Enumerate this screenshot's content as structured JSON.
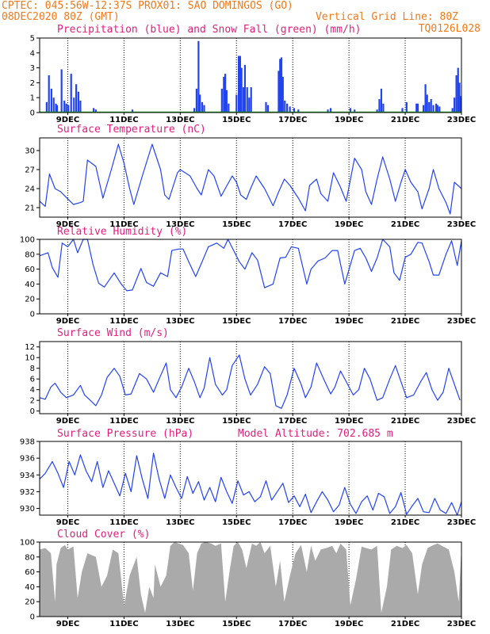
{
  "header": {
    "line1": "CPTEC:  045:56W-12:37S   PROX01: SAO DOMINGOS (GO)",
    "line2_left": "08DEC2020 80Z (GMT)",
    "line2_right": "Vertical Grid Line: 80Z",
    "code": "TQ0126L028"
  },
  "colors": {
    "header": "#f07a1a",
    "panel_title": "#e0207a",
    "line": "#2244ee",
    "bar": "#2244ee",
    "snow": "#22aa22",
    "cloud": "#aaaaaa"
  },
  "chart_data": [
    {
      "id": "precip",
      "type": "bar",
      "title": "Precipitation (blue) and Snow Fall (green) (mm/h)",
      "x_tick_labels": [
        "9DEC",
        "11DEC",
        "13DEC",
        "15DEC",
        "17DEC",
        "19DEC",
        "21DEC",
        "23DEC"
      ],
      "x_range": [
        0,
        15
      ],
      "ylim": [
        0,
        5
      ],
      "y_ticks": [
        0,
        1,
        2,
        3,
        4,
        5
      ],
      "grid": "vertical dotted at each labeled date",
      "series": [
        {
          "name": "Precipitation",
          "color": "#2244ee",
          "values": [
            [
              0.25,
              0.7
            ],
            [
              0.33,
              2.5
            ],
            [
              0.42,
              1.6
            ],
            [
              0.5,
              1.0
            ],
            [
              0.58,
              0.6
            ],
            [
              0.62,
              0.5
            ],
            [
              0.78,
              2.9
            ],
            [
              0.88,
              0.8
            ],
            [
              0.95,
              0.6
            ],
            [
              1.02,
              0.5
            ],
            [
              1.12,
              2.6
            ],
            [
              1.22,
              1.0
            ],
            [
              1.3,
              1.9
            ],
            [
              1.38,
              1.4
            ],
            [
              1.45,
              0.8
            ],
            [
              1.92,
              0.3
            ],
            [
              2.0,
              0.2
            ],
            [
              3.3,
              0.2
            ],
            [
              5.5,
              0.3
            ],
            [
              5.58,
              1.6
            ],
            [
              5.65,
              4.8
            ],
            [
              5.7,
              1.2
            ],
            [
              5.78,
              0.7
            ],
            [
              5.85,
              0.5
            ],
            [
              6.48,
              1.6
            ],
            [
              6.55,
              2.4
            ],
            [
              6.6,
              2.6
            ],
            [
              6.65,
              1.5
            ],
            [
              6.72,
              0.6
            ],
            [
              7.0,
              1.2
            ],
            [
              7.08,
              3.8
            ],
            [
              7.13,
              3.8
            ],
            [
              7.18,
              3.0
            ],
            [
              7.25,
              1.7
            ],
            [
              7.3,
              3.2
            ],
            [
              7.38,
              1.7
            ],
            [
              7.45,
              1.0
            ],
            [
              7.52,
              1.7
            ],
            [
              8.05,
              0.7
            ],
            [
              8.12,
              0.5
            ],
            [
              8.5,
              2.8
            ],
            [
              8.55,
              3.6
            ],
            [
              8.6,
              3.7
            ],
            [
              8.65,
              2.4
            ],
            [
              8.72,
              0.8
            ],
            [
              8.8,
              0.6
            ],
            [
              8.9,
              0.4
            ],
            [
              9.05,
              0.3
            ],
            [
              9.2,
              0.2
            ],
            [
              10.25,
              0.2
            ],
            [
              10.35,
              0.3
            ],
            [
              11.05,
              0.3
            ],
            [
              11.2,
              0.2
            ],
            [
              12.0,
              0.2
            ],
            [
              12.08,
              0.9
            ],
            [
              12.15,
              1.6
            ],
            [
              12.22,
              0.6
            ],
            [
              12.9,
              0.3
            ],
            [
              13.05,
              0.7
            ],
            [
              13.4,
              0.6
            ],
            [
              13.45,
              0.6
            ],
            [
              13.65,
              0.5
            ],
            [
              13.72,
              1.9
            ],
            [
              13.78,
              1.2
            ],
            [
              13.85,
              0.7
            ],
            [
              13.92,
              0.9
            ],
            [
              14.0,
              0.5
            ],
            [
              14.1,
              0.6
            ],
            [
              14.15,
              0.5
            ],
            [
              14.22,
              0.4
            ],
            [
              14.68,
              0.3
            ],
            [
              14.75,
              1.0
            ],
            [
              14.82,
              2.5
            ],
            [
              14.88,
              3.0
            ],
            [
              14.93,
              2.0
            ],
            [
              14.97,
              1.1
            ]
          ]
        },
        {
          "name": "Snow Fall",
          "color": "#22aa22",
          "values": []
        }
      ]
    },
    {
      "id": "temp",
      "type": "line",
      "title": "Surface Temperature (nC)",
      "x_tick_labels": [
        "9DEC",
        "11DEC",
        "13DEC",
        "15DEC",
        "17DEC",
        "19DEC",
        "21DEC",
        "23DEC"
      ],
      "ylim": [
        19.5,
        32
      ],
      "y_ticks": [
        21,
        24,
        27,
        30
      ],
      "x": [
        0,
        0.2,
        0.35,
        0.55,
        0.75,
        0.95,
        1.2,
        1.45,
        1.55,
        1.7,
        2.0,
        2.25,
        2.55,
        2.8,
        3.0,
        3.2,
        3.35,
        3.65,
        4.0,
        4.3,
        4.45,
        4.6,
        4.9,
        5.0,
        5.35,
        5.6,
        5.75,
        6.0,
        6.2,
        6.45,
        6.6,
        6.85,
        7.0,
        7.15,
        7.35,
        7.5,
        7.7,
        8.0,
        8.3,
        8.5,
        8.7,
        8.9,
        9.2,
        9.45,
        9.6,
        9.85,
        10.0,
        10.25,
        10.45,
        10.7,
        10.9,
        11.2,
        11.45,
        11.6,
        11.8,
        12.0,
        12.2,
        12.45,
        12.65,
        12.85,
        13.0,
        13.2,
        13.45,
        13.6,
        13.85,
        14.0,
        14.2,
        14.45,
        14.6,
        14.75,
        15.0
      ],
      "y": [
        22,
        21.2,
        26.3,
        24,
        23.5,
        22.6,
        21.5,
        21.8,
        22,
        28.5,
        27.5,
        22.5,
        27,
        31,
        28,
        24,
        21.5,
        26,
        31,
        27,
        23,
        22.3,
        26.5,
        27,
        26,
        24,
        23,
        27,
        26,
        22.8,
        24,
        26,
        25,
        23,
        22.3,
        24,
        26,
        24,
        21.3,
        23.5,
        25.5,
        24.5,
        22.5,
        20.5,
        24.5,
        25.5,
        23.2,
        22,
        26.5,
        24.2,
        22,
        28.8,
        27,
        23.5,
        21.5,
        25.5,
        29,
        25.5,
        22,
        25,
        27,
        25,
        23.5,
        20.8,
        24,
        27,
        24,
        21.8,
        20,
        25,
        24
      ]
    },
    {
      "id": "rh",
      "type": "line",
      "title": "Relative Humidity (%)",
      "x_tick_labels": [
        "9DEC",
        "11DEC",
        "13DEC",
        "15DEC",
        "17DEC",
        "19DEC",
        "21DEC",
        "23DEC"
      ],
      "ylim": [
        0,
        100
      ],
      "y_ticks": [
        0,
        20,
        40,
        60,
        80,
        100
      ],
      "x": [
        0,
        0.3,
        0.45,
        0.65,
        0.8,
        1.0,
        1.2,
        1.35,
        1.55,
        1.7,
        1.9,
        2.1,
        2.3,
        2.65,
        2.9,
        3.1,
        3.3,
        3.6,
        3.8,
        4.05,
        4.3,
        4.55,
        4.7,
        4.95,
        5.1,
        5.3,
        5.55,
        5.8,
        6.0,
        6.3,
        6.55,
        6.7,
        6.9,
        7.1,
        7.3,
        7.55,
        7.75,
        8.0,
        8.3,
        8.55,
        8.75,
        8.95,
        9.2,
        9.5,
        9.65,
        9.9,
        10.15,
        10.4,
        10.6,
        10.85,
        11.2,
        11.4,
        11.6,
        11.8,
        12.0,
        12.2,
        12.45,
        12.6,
        12.8,
        13.0,
        13.2,
        13.45,
        13.6,
        13.85,
        14.0,
        14.2,
        14.45,
        14.65,
        14.85,
        15.0
      ],
      "y": [
        78,
        82,
        62,
        49,
        95,
        90,
        100,
        82,
        100,
        100,
        66,
        41,
        36,
        55,
        40,
        31,
        32,
        61,
        42,
        37,
        55,
        50,
        85,
        87,
        87,
        70,
        50,
        72,
        90,
        95,
        88,
        100,
        85,
        70,
        60,
        82,
        72,
        35,
        40,
        75,
        76,
        90,
        88,
        40,
        60,
        71,
        75,
        85,
        85,
        40,
        85,
        88,
        75,
        57,
        75,
        100,
        90,
        55,
        45,
        76,
        80,
        96,
        95,
        70,
        52,
        52,
        80,
        98,
        65,
        98
      ]
    },
    {
      "id": "wind",
      "type": "line",
      "title": "Surface Wind (m/s)",
      "x_tick_labels": [
        "9DEC",
        "11DEC",
        "13DEC",
        "15DEC",
        "17DEC",
        "19DEC",
        "21DEC",
        "23DEC"
      ],
      "ylim": [
        -0.5,
        13
      ],
      "y_ticks": [
        0,
        2,
        4,
        6,
        8,
        10,
        12
      ],
      "x": [
        0,
        0.2,
        0.4,
        0.55,
        0.75,
        0.95,
        1.2,
        1.45,
        1.6,
        1.8,
        2.0,
        2.2,
        2.4,
        2.65,
        2.85,
        3.05,
        3.25,
        3.55,
        3.8,
        4.05,
        4.25,
        4.5,
        4.65,
        4.85,
        5.05,
        5.3,
        5.5,
        5.7,
        5.85,
        6.05,
        6.25,
        6.5,
        6.65,
        6.85,
        7.1,
        7.3,
        7.5,
        7.75,
        8.0,
        8.2,
        8.4,
        8.6,
        8.8,
        9.05,
        9.3,
        9.45,
        9.65,
        9.85,
        10.1,
        10.35,
        10.5,
        10.7,
        10.95,
        11.15,
        11.35,
        11.55,
        11.75,
        12.0,
        12.2,
        12.45,
        12.65,
        12.85,
        13.05,
        13.3,
        13.55,
        13.75,
        13.95,
        14.15,
        14.35,
        14.55,
        14.75,
        14.95
      ],
      "y": [
        2.5,
        2.2,
        4.5,
        5.2,
        3.5,
        2.5,
        3,
        4.8,
        3,
        2,
        1,
        3,
        6.3,
        8,
        6.5,
        3,
        3.2,
        7,
        6,
        3.5,
        6,
        9,
        4,
        2.5,
        4.5,
        8,
        5.5,
        2.5,
        4.3,
        10,
        5,
        3,
        4,
        8.5,
        10.5,
        6,
        3,
        5,
        8.3,
        7,
        1,
        0.5,
        3,
        8,
        5,
        2.5,
        4.5,
        9,
        6,
        3.2,
        4.5,
        7.5,
        5,
        3,
        4,
        8,
        6,
        2,
        2.5,
        6,
        8.5,
        5.5,
        2.5,
        3,
        5.5,
        7.2,
        4,
        2,
        3.5,
        8,
        5,
        2
      ]
    },
    {
      "id": "pres",
      "type": "line",
      "title": "Surface Pressure (hPa)",
      "annotation": "Model Altitude: 702.685 m",
      "x_tick_labels": [
        "9DEC",
        "11DEC",
        "13DEC",
        "15DEC",
        "17DEC",
        "19DEC",
        "21DEC",
        "23DEC"
      ],
      "ylim": [
        929.2,
        938
      ],
      "y_ticks": [
        930,
        932,
        934,
        936,
        938
      ],
      "x": [
        0,
        0.2,
        0.45,
        0.65,
        0.85,
        1.05,
        1.25,
        1.45,
        1.65,
        1.85,
        2.05,
        2.25,
        2.45,
        2.65,
        2.85,
        3.05,
        3.25,
        3.45,
        3.65,
        3.85,
        4.05,
        4.25,
        4.45,
        4.65,
        4.85,
        5.05,
        5.25,
        5.45,
        5.65,
        5.85,
        6.05,
        6.25,
        6.45,
        6.65,
        6.85,
        7.05,
        7.25,
        7.45,
        7.65,
        7.85,
        8.05,
        8.25,
        8.45,
        8.65,
        8.85,
        9.05,
        9.25,
        9.45,
        9.65,
        9.85,
        10.05,
        10.25,
        10.45,
        10.65,
        10.85,
        11.05,
        11.25,
        11.45,
        11.65,
        11.85,
        12.05,
        12.25,
        12.45,
        12.65,
        12.85,
        13.05,
        13.25,
        13.45,
        13.65,
        13.85,
        14.05,
        14.25,
        14.45,
        14.65,
        14.85,
        15.0
      ],
      "y": [
        933.5,
        934.2,
        935.6,
        934.2,
        932.5,
        935.6,
        934,
        936.4,
        934.5,
        933.2,
        935.6,
        932.5,
        934.5,
        933,
        931.5,
        934.2,
        932,
        936.3,
        933.5,
        931.2,
        936.6,
        933.5,
        931.2,
        934,
        932.5,
        931.2,
        933.8,
        931.8,
        933.2,
        931,
        932.5,
        930.8,
        933.7,
        932,
        930.6,
        933.3,
        931.6,
        932,
        930.8,
        931.4,
        933.3,
        931,
        932,
        933,
        930.7,
        931.5,
        930.2,
        931.7,
        929.5,
        930.8,
        932,
        931,
        929.6,
        930.4,
        932.5,
        930.5,
        929.4,
        930.8,
        931.5,
        929.8,
        931.8,
        931.4,
        929.4,
        930.2,
        931.9,
        929.3,
        930.3,
        931.2,
        929.6,
        929.5,
        931.2,
        929.8,
        929.4,
        930.7,
        929.2,
        930.8
      ]
    },
    {
      "id": "cloud",
      "type": "area",
      "title": "Cloud Cover (%)",
      "x_tick_labels": [
        "9DEC",
        "11DEC",
        "13DEC",
        "15DEC",
        "17DEC",
        "19DEC",
        "21DEC",
        "23DEC"
      ],
      "ylim": [
        0,
        100
      ],
      "y_ticks": [
        0,
        20,
        40,
        60,
        80,
        100
      ],
      "x": [
        0,
        0.2,
        0.4,
        0.55,
        0.6,
        0.75,
        0.9,
        1.0,
        1.2,
        1.35,
        1.5,
        1.7,
        2.0,
        2.2,
        2.4,
        2.6,
        2.8,
        3.0,
        3.2,
        3.45,
        3.6,
        3.75,
        3.9,
        4.05,
        4.1,
        4.3,
        4.5,
        4.65,
        4.8,
        4.95,
        5.1,
        5.3,
        5.45,
        5.6,
        5.75,
        5.9,
        6.1,
        6.25,
        6.45,
        6.6,
        6.75,
        6.9,
        7.05,
        7.2,
        7.35,
        7.55,
        7.7,
        7.85,
        8.0,
        8.2,
        8.4,
        8.55,
        8.7,
        8.9,
        9.1,
        9.3,
        9.5,
        9.65,
        9.8,
        10.0,
        10.2,
        10.4,
        10.55,
        10.7,
        10.9,
        11.05,
        11.25,
        11.45,
        11.6,
        11.8,
        12.0,
        12.15,
        12.35,
        12.5,
        12.7,
        12.9,
        13.05,
        13.25,
        13.45,
        13.6,
        13.8,
        14.0,
        14.15,
        14.35,
        14.55,
        14.75,
        14.9,
        15.0
      ],
      "y": [
        90,
        92,
        85,
        20,
        70,
        92,
        96,
        90,
        94,
        25,
        60,
        85,
        80,
        40,
        55,
        90,
        85,
        15,
        55,
        80,
        30,
        5,
        40,
        25,
        70,
        40,
        55,
        95,
        100,
        98,
        96,
        85,
        35,
        85,
        98,
        100,
        98,
        95,
        98,
        20,
        60,
        95,
        100,
        90,
        65,
        98,
        95,
        100,
        85,
        95,
        40,
        75,
        20,
        55,
        85,
        96,
        60,
        95,
        75,
        90,
        92,
        95,
        85,
        98,
        90,
        15,
        50,
        94,
        92,
        90,
        95,
        5,
        40,
        90,
        95,
        92,
        96,
        85,
        30,
        70,
        92,
        96,
        98,
        94,
        90,
        60,
        20,
        92
      ]
    }
  ]
}
